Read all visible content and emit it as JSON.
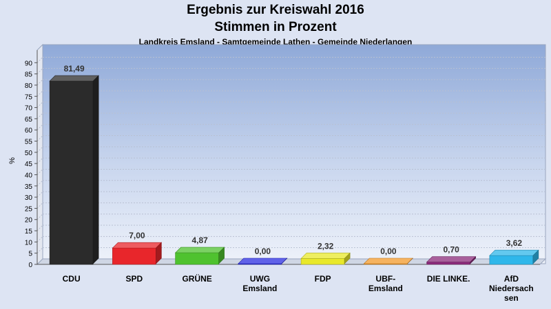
{
  "title": "Ergebnis zur Kreiswahl 2016",
  "subtitle": "Stimmen in Prozent",
  "caption": "Landkreis Emsland - Samtgemeinde Lathen - Gemeinde Niederlangen",
  "chart_data": {
    "type": "bar",
    "ylabel": "%",
    "ylim": [
      0,
      95
    ],
    "yticks": [
      0,
      5,
      10,
      15,
      20,
      25,
      30,
      35,
      40,
      45,
      50,
      55,
      60,
      65,
      70,
      75,
      80,
      85,
      90
    ],
    "grid": true,
    "categories": [
      [
        "CDU"
      ],
      [
        "SPD"
      ],
      [
        "GRÜNE"
      ],
      [
        "UWG",
        "Emsland"
      ],
      [
        "FDP"
      ],
      [
        "UBF-",
        "Emsland"
      ],
      [
        "DIE LINKE."
      ],
      [
        "AfD",
        "Niedersach",
        "sen"
      ]
    ],
    "values": [
      81.49,
      7.0,
      4.87,
      0.0,
      2.32,
      0.0,
      0.7,
      3.62
    ],
    "value_labels": [
      "81,49",
      "7,00",
      "4,87",
      "0,00",
      "2,32",
      "0,00",
      "0,70",
      "3,62"
    ],
    "colors": [
      "#2b2b2b",
      "#e8262b",
      "#4fc22f",
      "#2b2ee0",
      "#e8e82b",
      "#f39a2b",
      "#8b2a7a",
      "#2fb7ea"
    ]
  }
}
